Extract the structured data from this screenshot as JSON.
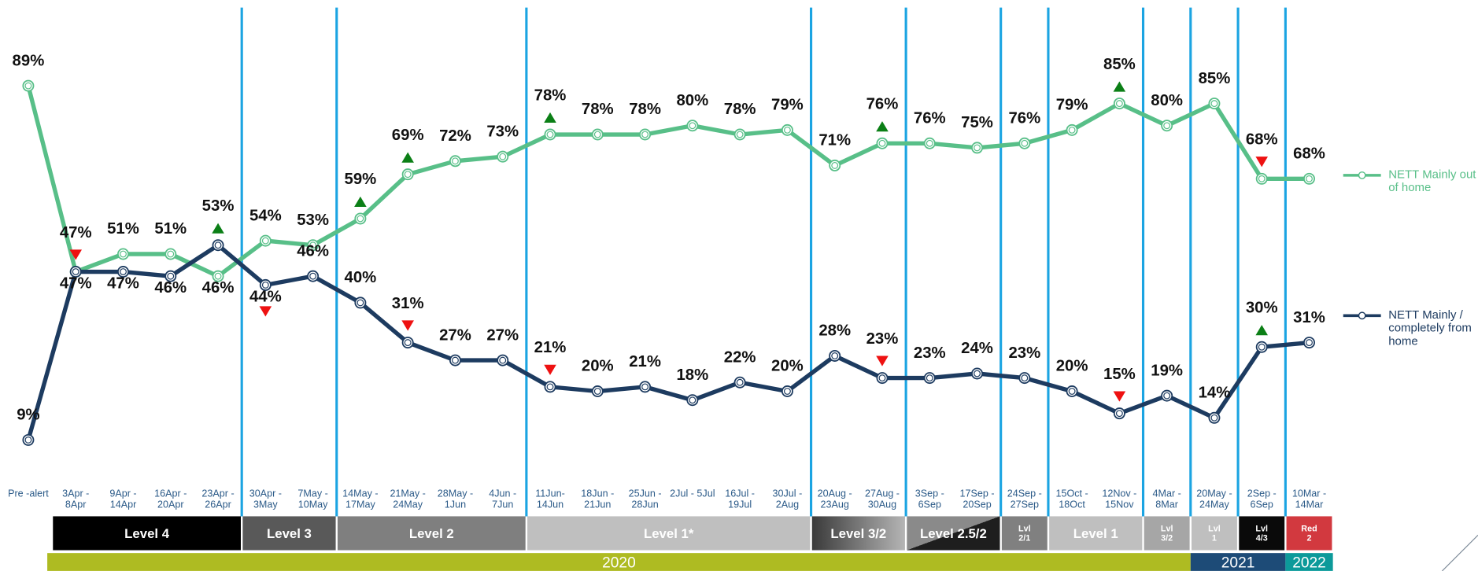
{
  "chart_data": {
    "type": "line",
    "categories": [
      "Pre -alert",
      "3Apr - 8Apr",
      "9Apr - 14Apr",
      "16Apr - 20Apr",
      "23Apr - 26Apr",
      "30Apr - 3May",
      "7May - 10May",
      "14May - 17May",
      "21May - 24May",
      "28May - 1Jun",
      "4Jun - 7Jun",
      "11Jun- 14Jun",
      "18Jun - 21Jun",
      "25Jun - 28Jun",
      "2Jul - 5Jul",
      "16Jul - 19Jul",
      "30Jul - 2Aug",
      "20Aug - 23Aug",
      "27Aug - 30Aug",
      "3Sep - 6Sep",
      "17Sep - 20Sep",
      "24Sep - 27Sep",
      "15Oct - 18Oct",
      "12Nov - 15Nov",
      "4Mar - 8Mar",
      "20May - 24May",
      "2Sep - 6Sep",
      "10Mar - 14Mar"
    ],
    "ylim": [
      0,
      100
    ],
    "change_colors": {
      "up": "#0b7f16",
      "down": "#ee1111"
    },
    "series": [
      {
        "name": "NETT Mainly out of home",
        "color": "#58bf88",
        "values": [
          89,
          47,
          51,
          51,
          46,
          54,
          53,
          59,
          69,
          72,
          73,
          78,
          78,
          78,
          80,
          78,
          79,
          71,
          76,
          76,
          75,
          76,
          79,
          85,
          80,
          85,
          68,
          68
        ],
        "value_labels": [
          "89%",
          "47%",
          "51%",
          "51%",
          "46%",
          "54%",
          "53%",
          "59%",
          "69%",
          "72%",
          "73%",
          "78%",
          "78%",
          "78%",
          "80%",
          "78%",
          "79%",
          "71%",
          "76%",
          "76%",
          "75%",
          "76%",
          "79%",
          "85%",
          "80%",
          "85%",
          "68%",
          "68%"
        ],
        "changes": [
          null,
          "down",
          null,
          null,
          null,
          null,
          null,
          "up",
          "up",
          null,
          null,
          "up",
          null,
          null,
          null,
          null,
          null,
          null,
          "up",
          null,
          null,
          null,
          null,
          "up",
          null,
          null,
          "down",
          null
        ]
      },
      {
        "name": "NETT Mainly / completely from home",
        "color": "#1d3b60",
        "values": [
          9,
          47,
          47,
          46,
          53,
          44,
          46,
          40,
          31,
          27,
          27,
          21,
          20,
          21,
          18,
          22,
          20,
          28,
          23,
          23,
          24,
          23,
          20,
          15,
          19,
          14,
          30,
          31
        ],
        "value_labels": [
          "9%",
          "47%",
          "47%",
          "46%",
          "53%",
          "44%",
          "46%",
          "40%",
          "31%",
          "27%",
          "27%",
          "21%",
          "20%",
          "21%",
          "18%",
          "22%",
          "20%",
          "28%",
          "23%",
          "23%",
          "24%",
          "23%",
          "20%",
          "15%",
          "19%",
          "14%",
          "30%",
          "31%"
        ],
        "changes": [
          null,
          null,
          null,
          null,
          "up",
          "down",
          null,
          null,
          "down",
          null,
          null,
          "down",
          null,
          null,
          null,
          null,
          null,
          null,
          "down",
          null,
          null,
          null,
          null,
          "down",
          null,
          null,
          "up",
          null
        ]
      }
    ],
    "levels": [
      {
        "label": "Level 4",
        "from": 1,
        "to": 4,
        "color": "#000000"
      },
      {
        "label": "Level 3",
        "from": 5,
        "to": 6,
        "color": "#595959"
      },
      {
        "label": "Level 2",
        "from": 7,
        "to": 10,
        "color": "#7f7f7f"
      },
      {
        "label": "Level 1*",
        "from": 11,
        "to": 16,
        "color": "#bfbfbf"
      },
      {
        "label": "Level 3/2",
        "from": 17,
        "to": 18,
        "color": [
          "#3a3a3a",
          "#b5b5b5"
        ]
      },
      {
        "label": "Level 2.5/2",
        "from": 19,
        "to": 20,
        "color": [
          "#8a8a8a",
          "#1e1e1e"
        ],
        "style": "diagonal"
      },
      {
        "label": "Lvl 2/1",
        "from": 21,
        "to": 21,
        "color": "#808080"
      },
      {
        "label": "Level 1",
        "from": 22,
        "to": 23,
        "color": "#bfbfbf"
      },
      {
        "label": "Lvl 3/2",
        "from": 24,
        "to": 24,
        "color": "#a6a6a6"
      },
      {
        "label": "Lvl 1",
        "from": 25,
        "to": 25,
        "color": "#bfbfbf"
      },
      {
        "label": "Lvl 4/3",
        "from": 26,
        "to": 26,
        "color": "#0a0a0a"
      },
      {
        "label": "Red 2",
        "from": 27,
        "to": 27,
        "color": "#d2393f"
      }
    ],
    "years": [
      {
        "label": "2020",
        "from": 1,
        "to": 24,
        "color": "#aebb22"
      },
      {
        "label": "2021",
        "from": 25,
        "to": 26,
        "color": "#1d4b77"
      },
      {
        "label": "2022",
        "from": 27,
        "to": 27,
        "color": "#0c9a9a"
      }
    ]
  }
}
